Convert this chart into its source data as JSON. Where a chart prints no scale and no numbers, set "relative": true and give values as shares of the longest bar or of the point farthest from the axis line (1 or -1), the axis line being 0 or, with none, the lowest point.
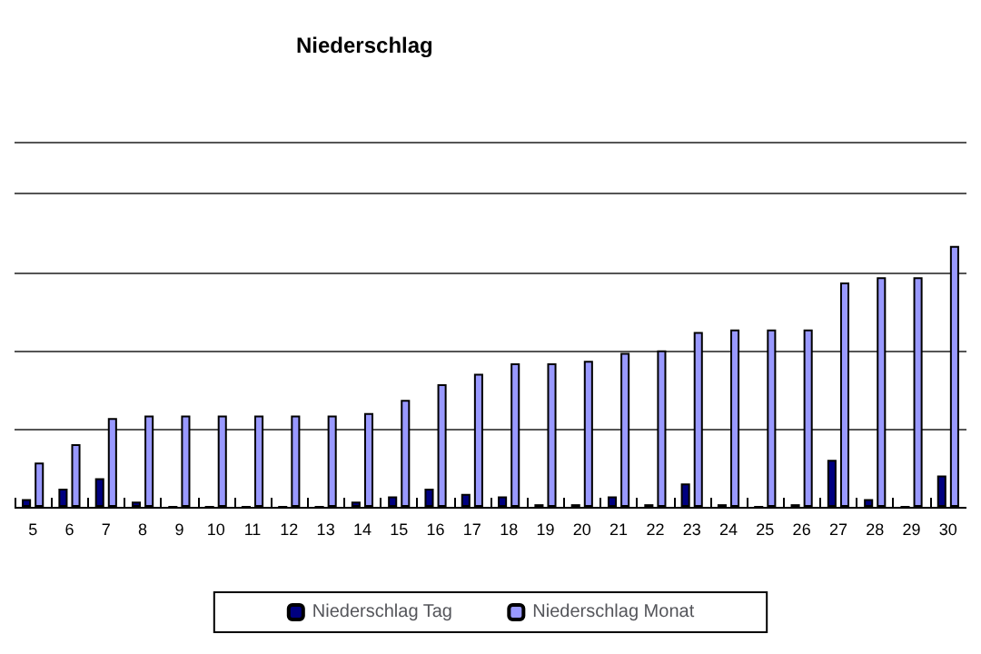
{
  "chart_data": {
    "type": "bar",
    "title": "Niederschlag",
    "relative": true,
    "grid": "y",
    "legend": "bottom",
    "categories": [
      "5",
      "6",
      "7",
      "8",
      "9",
      "10",
      "11",
      "12",
      "13",
      "14",
      "15",
      "16",
      "17",
      "18",
      "19",
      "20",
      "21",
      "22",
      "23",
      "24",
      "25",
      "26",
      "27",
      "28",
      "29",
      "30"
    ],
    "series": [
      {
        "name": "Niederschlag Tag",
        "color": "#000080",
        "values": [
          0.03,
          0.07,
          0.11,
          0.02,
          0,
          0,
          0,
          0,
          0,
          0.02,
          0.04,
          0.07,
          0.05,
          0.04,
          0.01,
          0.01,
          0.04,
          0.01,
          0.09,
          0.01,
          0,
          0.01,
          0.18,
          0.03,
          0,
          0.12
        ]
      },
      {
        "name": "Niederschlag Monat",
        "color": "#9999ff",
        "values": [
          0.17,
          0.24,
          0.34,
          0.35,
          0.35,
          0.35,
          0.35,
          0.35,
          0.35,
          0.36,
          0.41,
          0.47,
          0.51,
          0.55,
          0.55,
          0.56,
          0.59,
          0.6,
          0.67,
          0.68,
          0.68,
          0.68,
          0.86,
          0.88,
          0.88,
          1
        ]
      }
    ]
  }
}
